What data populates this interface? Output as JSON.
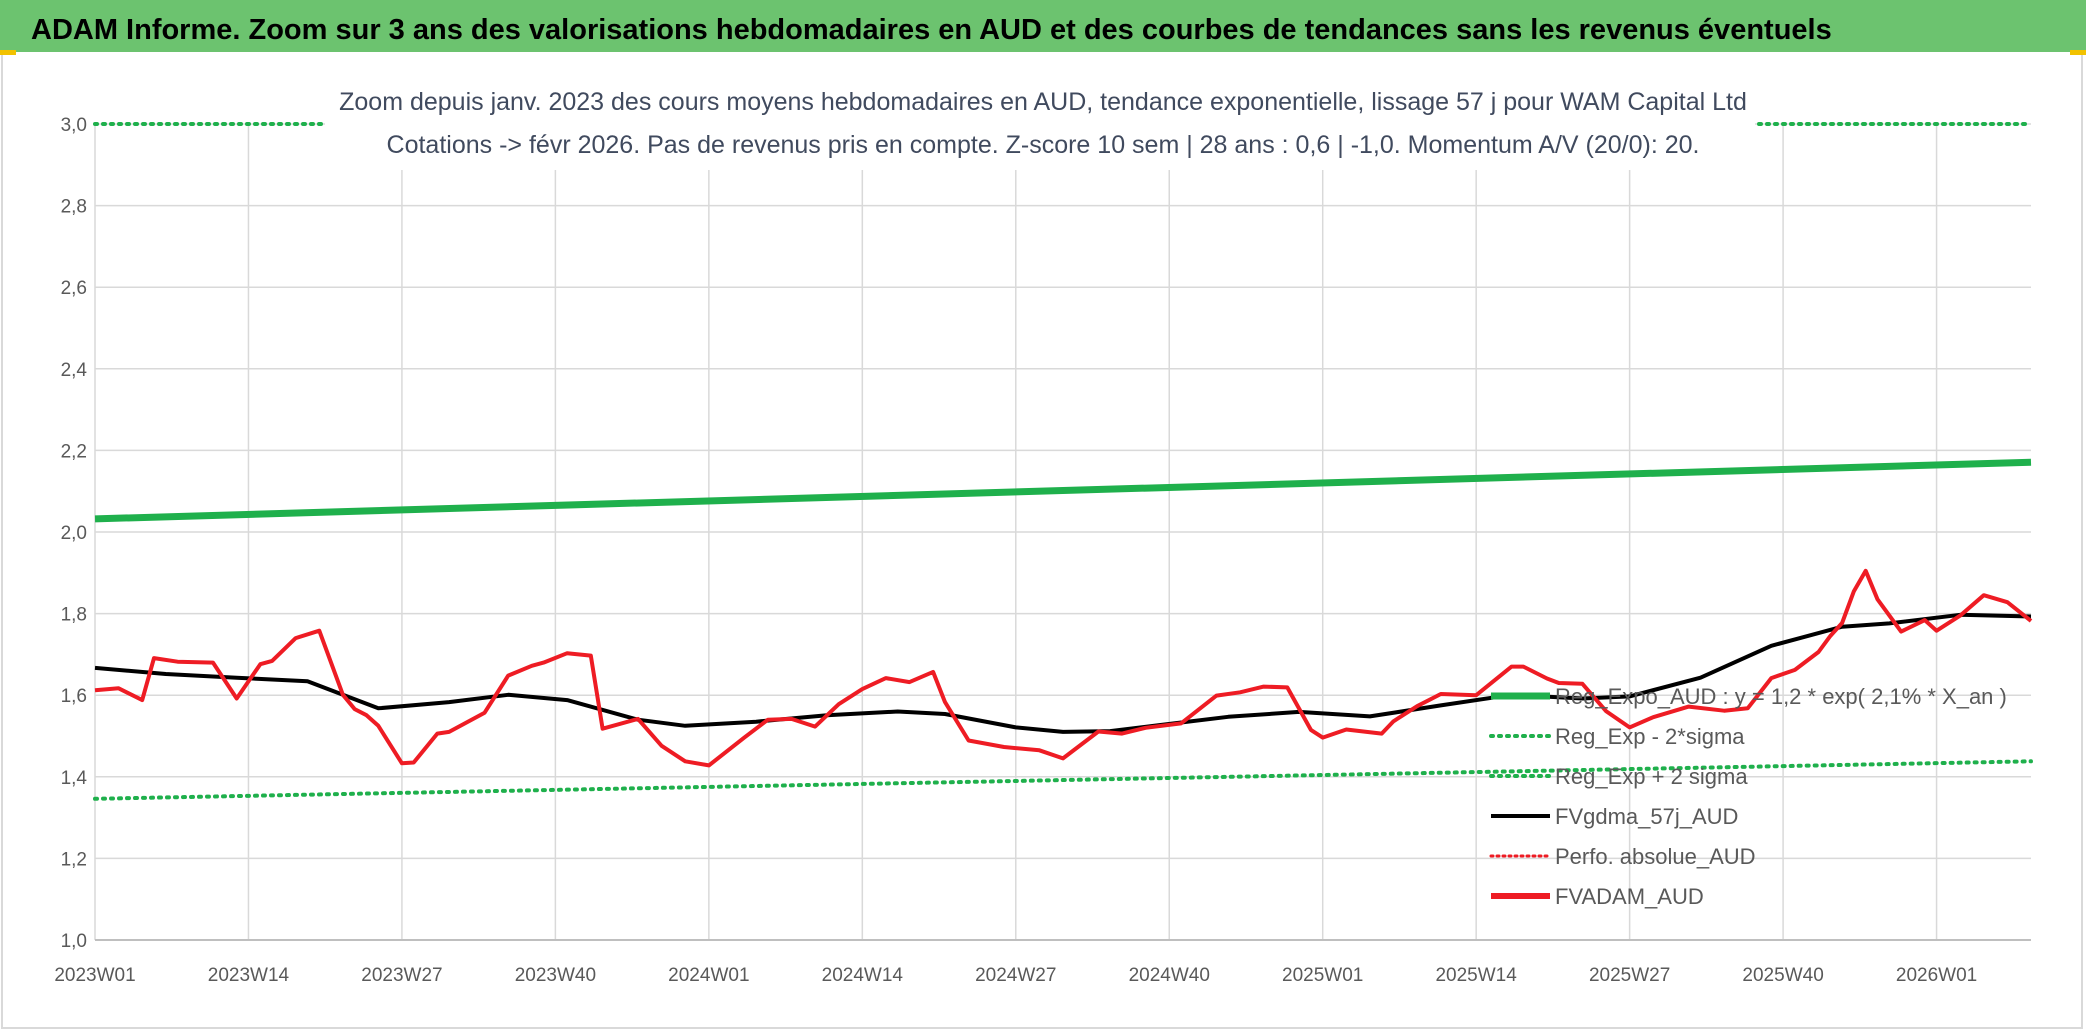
{
  "header": {
    "title": "ADAM Informe. Zoom sur 3 ans des valorisations hebdomadaires en AUD et des courbes de tendances sans les revenus éventuels",
    "bar_color": "#6cc36f"
  },
  "chart_data": {
    "type": "line",
    "title": "Zoom depuis janv. 2023 des cours moyens hebdomadaires en AUD, tendance exponentielle, lissage 57 j pour WAM Capital Ltd",
    "subtitle": "Cotations -> févr 2026. Pas de revenus pris en compte. Z-score 10 sem | 28 ans : 0,6 | -1,0. Momentum A/V (20/0): 20.",
    "xlabel": "",
    "ylabel": "",
    "ylim": [
      1.0,
      3.0
    ],
    "yticks": [
      "1,0",
      "1,2",
      "1,4",
      "1,6",
      "1,8",
      "2,0",
      "2,2",
      "2,4",
      "2,6",
      "2,8",
      "3,0"
    ],
    "x_ticks": [
      "2023W01",
      "2023W14",
      "2023W27",
      "2023W40",
      "2024W01",
      "2024W14",
      "2024W27",
      "2024W40",
      "2025W01",
      "2025W14",
      "2025W27",
      "2025W40",
      "2026W01"
    ],
    "x_range_weeks": [
      0,
      164
    ],
    "grid": true,
    "legend_position": "right",
    "legend": [
      "Reg_Expo_AUD : y = 1,2 * exp( 2,1% *  X_an )",
      "Reg_Exp - 2*sigma",
      "Reg_Exp + 2 sigma",
      "FVgdma_57j_AUD",
      "Perfo. absolue_AUD",
      "FVADAM_AUD"
    ],
    "series": [
      {
        "name": "Reg_Expo_AUD : y = 1,2 * exp( 2,1% *  X_an )",
        "color": "#1fb04c",
        "style": "thick",
        "x": [
          0,
          164
        ],
        "values": [
          2.032,
          2.171
        ]
      },
      {
        "name": "Reg_Exp - 2*sigma",
        "color": "#1fb04c",
        "style": "dotted",
        "x": [
          0,
          164
        ],
        "values": [
          1.346,
          1.438
        ]
      },
      {
        "name": "Reg_Exp + 2 sigma",
        "color": "#1fb04c",
        "style": "dotted",
        "x": [
          0,
          164
        ],
        "values": [
          3.0,
          3.0
        ]
      },
      {
        "name": "FVgdma_57j_AUD",
        "color": "#000000",
        "style": "solid",
        "x": [
          0,
          6,
          12,
          18,
          24,
          30,
          35,
          40,
          46,
          50,
          56,
          62,
          68,
          72,
          78,
          82,
          86,
          90,
          96,
          102,
          108,
          114,
          120,
          126,
          130,
          136,
          142,
          148,
          152,
          158,
          164
        ],
        "values": [
          1.667,
          1.652,
          1.643,
          1.634,
          1.568,
          1.583,
          1.601,
          1.588,
          1.54,
          1.525,
          1.535,
          1.551,
          1.56,
          1.554,
          1.521,
          1.51,
          1.512,
          1.526,
          1.547,
          1.559,
          1.548,
          1.575,
          1.601,
          1.592,
          1.597,
          1.643,
          1.721,
          1.768,
          1.776,
          1.797,
          1.793
        ]
      },
      {
        "name": "FVADAM_AUD",
        "color": "#ee1c24",
        "style": "solid",
        "x": [
          0,
          2,
          4,
          5,
          7,
          10,
          12,
          14,
          15,
          17,
          19,
          21,
          22,
          23,
          24,
          26,
          27,
          29,
          30,
          33,
          35,
          37,
          38,
          40,
          42,
          43,
          46,
          48,
          50,
          52,
          55,
          57,
          59,
          61,
          63,
          65,
          67,
          69,
          71,
          72,
          74,
          77,
          80,
          82,
          85,
          87,
          89,
          92,
          95,
          97,
          99,
          101,
          103,
          104,
          106,
          109,
          110,
          112,
          114,
          117,
          120,
          121,
          123,
          124,
          126,
          128,
          130,
          132,
          135,
          138,
          140,
          142,
          144,
          146,
          147,
          148,
          149,
          150,
          151,
          153,
          155,
          156,
          158,
          160,
          162,
          164
        ],
        "values": [
          1.612,
          1.617,
          1.588,
          1.691,
          1.682,
          1.68,
          1.592,
          1.676,
          1.684,
          1.74,
          1.758,
          1.601,
          1.566,
          1.551,
          1.525,
          1.433,
          1.435,
          1.506,
          1.51,
          1.557,
          1.648,
          1.672,
          1.68,
          1.703,
          1.697,
          1.518,
          1.542,
          1.476,
          1.438,
          1.428,
          1.496,
          1.54,
          1.542,
          1.523,
          1.578,
          1.615,
          1.642,
          1.632,
          1.657,
          1.583,
          1.489,
          1.473,
          1.465,
          1.445,
          1.511,
          1.506,
          1.52,
          1.531,
          1.599,
          1.607,
          1.621,
          1.619,
          1.515,
          1.496,
          1.516,
          1.506,
          1.536,
          1.573,
          1.603,
          1.6,
          1.67,
          1.67,
          1.641,
          1.63,
          1.628,
          1.561,
          1.521,
          1.546,
          1.572,
          1.562,
          1.568,
          1.642,
          1.662,
          1.706,
          1.745,
          1.777,
          1.855,
          1.905,
          1.835,
          1.756,
          1.784,
          1.758,
          1.795,
          1.845,
          1.828,
          1.782
        ]
      }
    ]
  }
}
